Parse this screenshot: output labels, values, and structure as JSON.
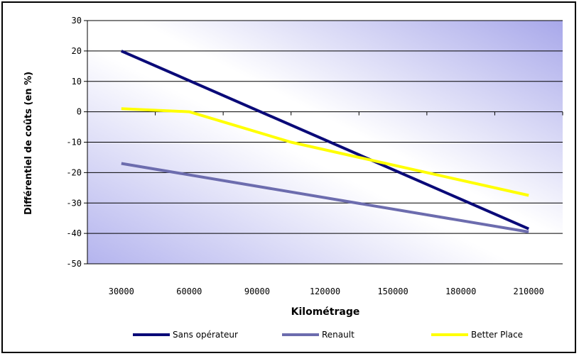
{
  "chart_data": {
    "type": "line",
    "title": "",
    "xlabel": "Kilométrage",
    "ylabel": "Différentiel de coûts (en %)",
    "x": [
      30000,
      60000,
      90000,
      120000,
      150000,
      180000,
      210000
    ],
    "ylim": [
      -50,
      30
    ],
    "yticks": [
      30,
      20,
      10,
      0,
      -10,
      -20,
      -30,
      -40,
      -50
    ],
    "xtick_labels": [
      "30000",
      "60000",
      "90000",
      "120000",
      "150000",
      "180000",
      "210000"
    ],
    "grid": "horizontal",
    "legend_position": "bottom",
    "background": "gradient",
    "series": [
      {
        "name": "Sans opérateur",
        "color": "#0a0a78",
        "x": [
          30000,
          210000
        ],
        "values": [
          20,
          -38.5
        ]
      },
      {
        "name": "Renault",
        "color": "#6c6cae",
        "x": [
          30000,
          210000
        ],
        "values": [
          -17,
          -39.5
        ]
      },
      {
        "name": "Better Place",
        "color": "#ffff00",
        "x": [
          30000,
          60000,
          105000,
          210000
        ],
        "values": [
          1,
          0,
          -10,
          -27.5
        ]
      }
    ]
  }
}
